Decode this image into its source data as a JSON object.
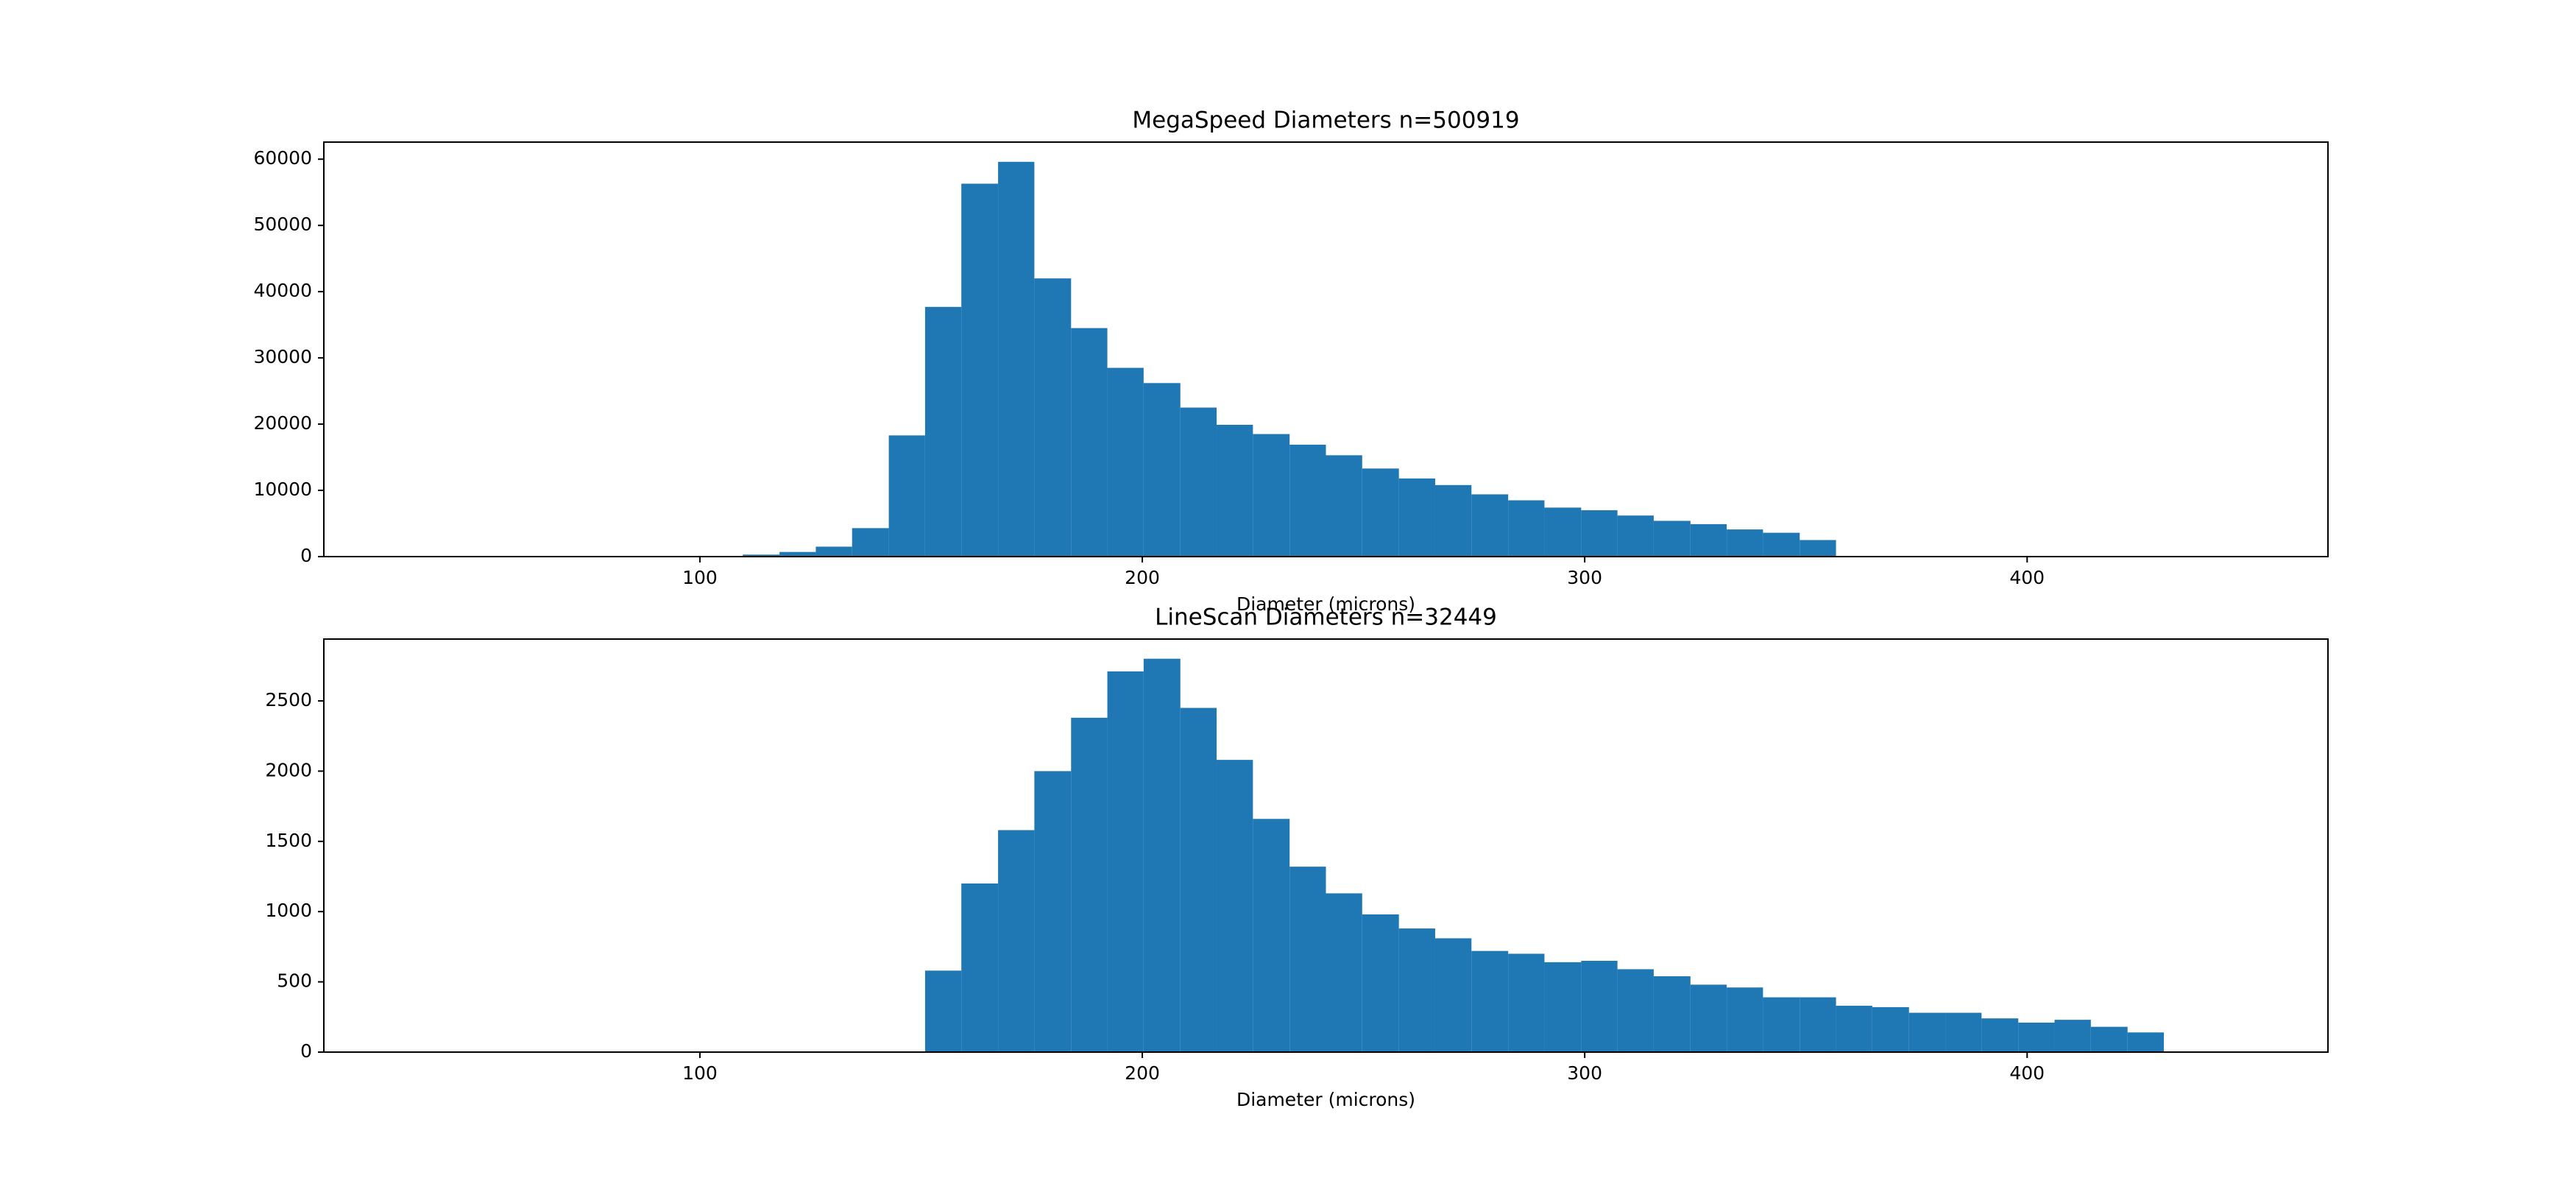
{
  "chart_data": [
    {
      "type": "histogram",
      "title": "MegaSpeed Diameters n=500919",
      "xlabel": "Diameter (microns)",
      "color": "#1f77b4",
      "bins": [
        35.6,
        43.8,
        52.1,
        60.3,
        68.5,
        76.8,
        85.0,
        93.3,
        101.5,
        109.7,
        118.0,
        126.2,
        134.4,
        142.7,
        150.9,
        159.1,
        167.4,
        175.6,
        183.9,
        192.1,
        200.3,
        208.6,
        216.8,
        225.0,
        233.3,
        241.5,
        249.7,
        258.0,
        266.2,
        274.4,
        282.7,
        290.9,
        299.2,
        307.4,
        315.6,
        323.9,
        332.1,
        340.3,
        348.6,
        356.8,
        365.0,
        373.3,
        381.5,
        389.7,
        398.0,
        406.2,
        414.4,
        422.7,
        430.9,
        439.1,
        447.4
      ],
      "values": [
        0,
        0,
        0,
        0,
        0,
        0,
        0,
        0,
        0,
        300,
        700,
        1500,
        4300,
        18300,
        37700,
        56300,
        59600,
        42000,
        34500,
        28500,
        26200,
        22500,
        19900,
        18500,
        16900,
        15300,
        13300,
        11800,
        10800,
        9400,
        8500,
        7400,
        7000,
        6200,
        5400,
        4900,
        4100,
        3600,
        2500,
        0,
        0,
        0,
        0,
        0,
        0,
        0,
        0,
        0,
        0,
        0
      ],
      "xlim": [
        15,
        468
      ],
      "ylim": [
        0,
        62580
      ],
      "xticks": [
        100,
        200,
        300,
        400
      ],
      "yticks": [
        0,
        10000,
        20000,
        30000,
        40000,
        50000,
        60000
      ]
    },
    {
      "type": "histogram",
      "title": "LineScan Diameters n=32449",
      "xlabel": "Diameter (microns)",
      "color": "#1f77b4",
      "bins": [
        35.6,
        43.8,
        52.1,
        60.3,
        68.5,
        76.8,
        85.0,
        93.3,
        101.5,
        109.7,
        118.0,
        126.2,
        134.4,
        142.7,
        150.9,
        159.1,
        167.4,
        175.6,
        183.9,
        192.1,
        200.3,
        208.6,
        216.8,
        225.0,
        233.3,
        241.5,
        249.7,
        258.0,
        266.2,
        274.4,
        282.7,
        290.9,
        299.2,
        307.4,
        315.6,
        323.9,
        332.1,
        340.3,
        348.6,
        356.8,
        365.0,
        373.3,
        381.5,
        389.7,
        398.0,
        406.2,
        414.4,
        422.7,
        430.9,
        439.1,
        447.4
      ],
      "values": [
        0,
        0,
        0,
        0,
        0,
        0,
        0,
        0,
        0,
        0,
        0,
        0,
        0,
        0,
        580,
        1200,
        1580,
        2000,
        2380,
        2710,
        2800,
        2450,
        2080,
        1660,
        1320,
        1130,
        980,
        880,
        810,
        720,
        700,
        640,
        650,
        590,
        540,
        480,
        460,
        390,
        390,
        330,
        320,
        280,
        280,
        240,
        210,
        230,
        180,
        140,
        0,
        0
      ],
      "xlim": [
        15,
        468
      ],
      "ylim": [
        0,
        2940
      ],
      "xticks": [
        100,
        200,
        300,
        400
      ],
      "yticks": [
        0,
        500,
        1000,
        1500,
        2000,
        2500
      ]
    }
  ]
}
